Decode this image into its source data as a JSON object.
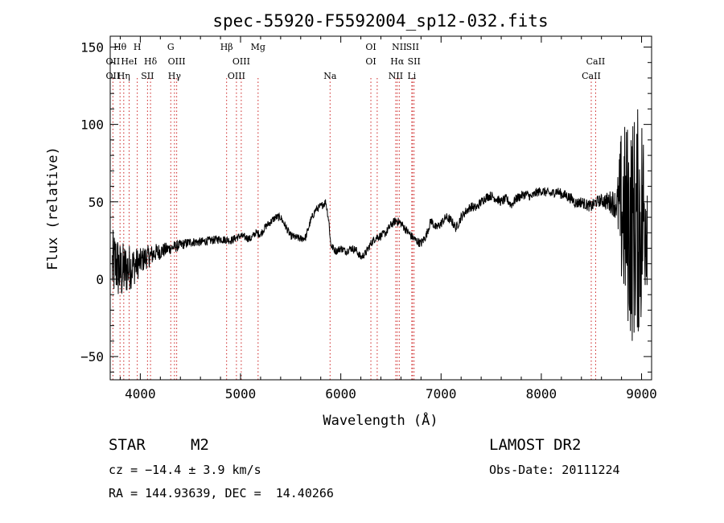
{
  "chart_data": {
    "type": "line",
    "title": "spec-55920-F5592004_sp12-032.fits",
    "xlabel": "Wavelength (Å)",
    "ylabel": "Flux (relative)",
    "xlim": [
      3700,
      9100
    ],
    "ylim": [
      -65,
      157
    ],
    "xticks": [
      4000,
      5000,
      6000,
      7000,
      8000,
      9000
    ],
    "xtick_labels": [
      "4000",
      "5000",
      "6000",
      "7000",
      "8000",
      "9000"
    ],
    "yticks": [
      -50,
      0,
      50,
      100,
      150
    ],
    "ytick_labels": [
      "−50",
      "0",
      "50",
      "100",
      "150"
    ],
    "grid": false,
    "line_color": "#000000",
    "marker_color": "#cc2222",
    "spectrum_anchors": [
      [
        3720,
        8
      ],
      [
        3760,
        10
      ],
      [
        3800,
        4
      ],
      [
        3850,
        6
      ],
      [
        3900,
        8
      ],
      [
        3950,
        9
      ],
      [
        4000,
        11
      ],
      [
        4050,
        14
      ],
      [
        4100,
        15
      ],
      [
        4150,
        17
      ],
      [
        4200,
        18
      ],
      [
        4250,
        19
      ],
      [
        4300,
        20
      ],
      [
        4350,
        21
      ],
      [
        4400,
        22
      ],
      [
        4450,
        23
      ],
      [
        4500,
        24
      ],
      [
        4600,
        24
      ],
      [
        4700,
        25
      ],
      [
        4800,
        26
      ],
      [
        4900,
        25
      ],
      [
        5000,
        28
      ],
      [
        5050,
        27
      ],
      [
        5100,
        26
      ],
      [
        5150,
        30
      ],
      [
        5200,
        29
      ],
      [
        5250,
        34
      ],
      [
        5300,
        37
      ],
      [
        5350,
        40
      ],
      [
        5400,
        40
      ],
      [
        5450,
        34
      ],
      [
        5500,
        28
      ],
      [
        5550,
        27
      ],
      [
        5600,
        26
      ],
      [
        5650,
        27
      ],
      [
        5700,
        38
      ],
      [
        5750,
        45
      ],
      [
        5800,
        47
      ],
      [
        5850,
        50
      ],
      [
        5880,
        38
      ],
      [
        5900,
        22
      ],
      [
        5950,
        18
      ],
      [
        6000,
        20
      ],
      [
        6050,
        18
      ],
      [
        6100,
        20
      ],
      [
        6150,
        19
      ],
      [
        6200,
        14
      ],
      [
        6250,
        17
      ],
      [
        6300,
        23
      ],
      [
        6350,
        27
      ],
      [
        6400,
        28
      ],
      [
        6450,
        30
      ],
      [
        6500,
        35
      ],
      [
        6550,
        38
      ],
      [
        6600,
        36
      ],
      [
        6650,
        32
      ],
      [
        6700,
        28
      ],
      [
        6750,
        25
      ],
      [
        6800,
        23
      ],
      [
        6850,
        28
      ],
      [
        6900,
        38
      ],
      [
        6950,
        33
      ],
      [
        7000,
        36
      ],
      [
        7050,
        40
      ],
      [
        7100,
        38
      ],
      [
        7150,
        33
      ],
      [
        7200,
        40
      ],
      [
        7250,
        44
      ],
      [
        7300,
        47
      ],
      [
        7350,
        46
      ],
      [
        7400,
        50
      ],
      [
        7450,
        53
      ],
      [
        7500,
        54
      ],
      [
        7550,
        52
      ],
      [
        7600,
        50
      ],
      [
        7650,
        52
      ],
      [
        7700,
        48
      ],
      [
        7750,
        52
      ],
      [
        7800,
        54
      ],
      [
        7850,
        55
      ],
      [
        7900,
        53
      ],
      [
        7950,
        56
      ],
      [
        8000,
        57
      ],
      [
        8050,
        56
      ],
      [
        8100,
        55
      ],
      [
        8150,
        57
      ],
      [
        8200,
        55
      ],
      [
        8250,
        54
      ],
      [
        8300,
        52
      ],
      [
        8350,
        49
      ],
      [
        8400,
        50
      ],
      [
        8450,
        48
      ],
      [
        8500,
        47
      ],
      [
        8550,
        50
      ],
      [
        8600,
        51
      ],
      [
        8650,
        50
      ],
      [
        8700,
        50
      ],
      [
        8750,
        48
      ],
      [
        8800,
        45
      ],
      [
        8850,
        38
      ],
      [
        8900,
        32
      ],
      [
        8950,
        36
      ],
      [
        9000,
        40
      ],
      [
        9050,
        45
      ]
    ],
    "spectrum_noise": [
      [
        3700,
        25
      ],
      [
        3850,
        18
      ],
      [
        4000,
        9
      ],
      [
        4150,
        6
      ],
      [
        4300,
        4
      ],
      [
        4500,
        3
      ],
      [
        5000,
        2.5
      ],
      [
        6000,
        2.5
      ],
      [
        7000,
        3
      ],
      [
        8000,
        3
      ],
      [
        8600,
        4
      ],
      [
        8750,
        10
      ],
      [
        8800,
        55
      ],
      [
        8900,
        75
      ],
      [
        9000,
        75
      ],
      [
        9050,
        50
      ]
    ],
    "line_labels": [
      {
        "text": "Hθ",
        "row": 0,
        "wl": 3798
      },
      {
        "text": "H",
        "row": 0,
        "wl": 3970
      },
      {
        "text": "G",
        "row": 0,
        "wl": 4304
      },
      {
        "text": "Hβ",
        "row": 0,
        "wl": 4861
      },
      {
        "text": "Mg",
        "row": 0,
        "wl": 5175
      },
      {
        "text": "OI",
        "row": 0,
        "wl": 6300
      },
      {
        "text": "NII",
        "row": 0,
        "wl": 6583
      },
      {
        "text": "SII",
        "row": 0,
        "wl": 6716
      },
      {
        "text": "OII",
        "row": 1,
        "wl": 3727
      },
      {
        "text": "HeI",
        "row": 1,
        "wl": 3889
      },
      {
        "text": "Hδ",
        "row": 1,
        "wl": 4102
      },
      {
        "text": "OIII",
        "row": 1,
        "wl": 4363
      },
      {
        "text": "OIII",
        "row": 1,
        "wl": 5007
      },
      {
        "text": "OI",
        "row": 1,
        "wl": 6300
      },
      {
        "text": "Hα",
        "row": 1,
        "wl": 6563
      },
      {
        "text": "SII",
        "row": 1,
        "wl": 6731
      },
      {
        "text": "CaII",
        "row": 1,
        "wl": 8542
      },
      {
        "text": "OII",
        "row": 2,
        "wl": 3727
      },
      {
        "text": "Hη",
        "row": 2,
        "wl": 3835
      },
      {
        "text": "SII",
        "row": 2,
        "wl": 4072
      },
      {
        "text": "Hγ",
        "row": 2,
        "wl": 4341
      },
      {
        "text": "OIII",
        "row": 2,
        "wl": 4959
      },
      {
        "text": "Na",
        "row": 2,
        "wl": 5893
      },
      {
        "text": "NII",
        "row": 2,
        "wl": 6548
      },
      {
        "text": "Li",
        "row": 2,
        "wl": 6708
      },
      {
        "text": "CaII",
        "row": 2,
        "wl": 8498
      }
    ],
    "line_markers": [
      3727,
      3798,
      3835,
      3889,
      3970,
      4072,
      4102,
      4304,
      4341,
      4363,
      4861,
      4959,
      5007,
      5175,
      5893,
      6300,
      6363,
      6548,
      6563,
      6583,
      6708,
      6716,
      6731,
      8498,
      8542
    ]
  },
  "info": {
    "class_label": "STAR",
    "subclass": "M2",
    "survey": "LAMOST DR2",
    "redshift": "cz = −14.4 ± 3.9 km/s",
    "obs_date": "Obs-Date: 20111224",
    "coords": "RA = 144.93639, DEC =  14.40266"
  }
}
